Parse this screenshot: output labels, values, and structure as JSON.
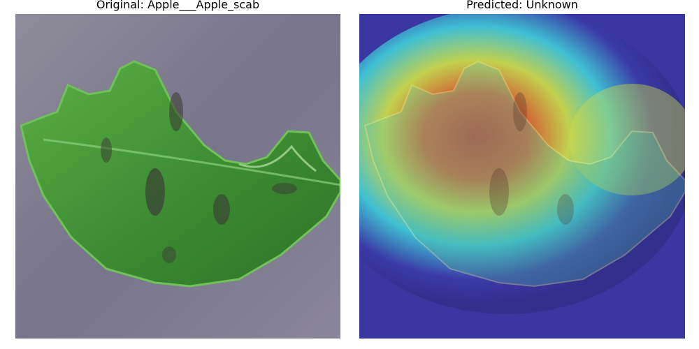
{
  "figure": {
    "left_title": "Original: Apple___Apple_scab",
    "right_title": "Predicted: Unknown"
  },
  "images": {
    "left": {
      "subject": "apple-leaf-photo"
    },
    "right": {
      "subject": "apple-leaf-heatmap-overlay",
      "colormap": "jet",
      "colors": {
        "low": "#3b3aa6",
        "mid_low": "#3fc7d6",
        "mid": "#c9d94a",
        "mid_high": "#e7a238",
        "high": "#c93c2a"
      }
    }
  }
}
